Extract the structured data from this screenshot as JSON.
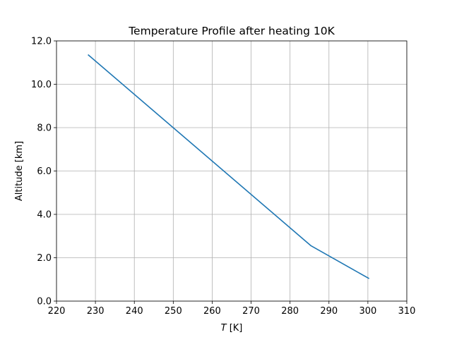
{
  "chart_data": {
    "type": "line",
    "title": "Temperature Profile after heating 10K",
    "xlabel_italic": "T",
    "xlabel_rest": " [K]",
    "ylabel": "Altitude [km]",
    "xlim": [
      220,
      310
    ],
    "ylim": [
      0,
      12
    ],
    "xticks": [
      220,
      230,
      240,
      250,
      260,
      270,
      280,
      290,
      300,
      310
    ],
    "yticks": [
      0,
      2,
      4,
      6,
      8,
      10,
      12
    ],
    "xtick_labels": [
      "220",
      "230",
      "240",
      "250",
      "260",
      "270",
      "280",
      "290",
      "300",
      "310"
    ],
    "ytick_labels": [
      "0.0",
      "2.0",
      "4.0",
      "6.0",
      "8.0",
      "10.0",
      "12.0"
    ],
    "grid": true,
    "series": [
      {
        "color": "#1f77b4",
        "x": [
          300.2,
          285.4,
          228.2
        ],
        "y": [
          1.05,
          2.55,
          11.35
        ]
      }
    ]
  }
}
